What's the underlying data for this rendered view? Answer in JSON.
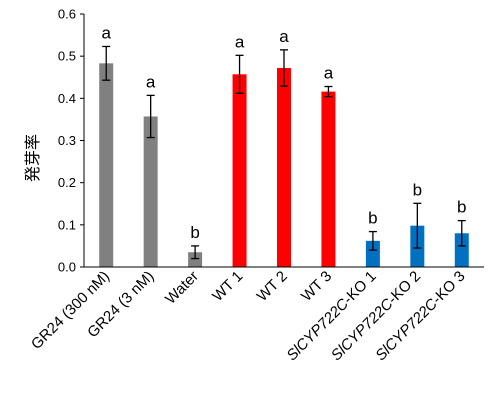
{
  "chart_data": {
    "type": "bar",
    "title": "",
    "xlabel": "",
    "ylabel": "発芽率",
    "ylim": [
      0,
      0.6
    ],
    "yticks": [
      "0.0",
      "0.1",
      "0.2",
      "0.3",
      "0.4",
      "0.5",
      "0.6"
    ],
    "grid": false,
    "legend": "none",
    "categories": [
      "GR24 (300 nM)",
      "GR24 (3 nM)",
      "Water",
      "WT 1",
      "WT 2",
      "WT 3",
      "SlCYP722C-KO 1",
      "SlCYP722C-KO 2",
      "SlCYP722C-KO 3"
    ],
    "values": [
      0.483,
      0.357,
      0.035,
      0.457,
      0.472,
      0.416,
      0.062,
      0.098,
      0.08
    ],
    "errors": [
      0.04,
      0.05,
      0.015,
      0.045,
      0.043,
      0.012,
      0.022,
      0.053,
      0.03
    ],
    "significance": [
      "a",
      "a",
      "b",
      "a",
      "a",
      "a",
      "b",
      "b",
      "b"
    ],
    "colors": [
      "#808080",
      "#808080",
      "#808080",
      "#ff0000",
      "#ff0000",
      "#ff0000",
      "#0070c0",
      "#0070c0",
      "#0070c0"
    ]
  }
}
